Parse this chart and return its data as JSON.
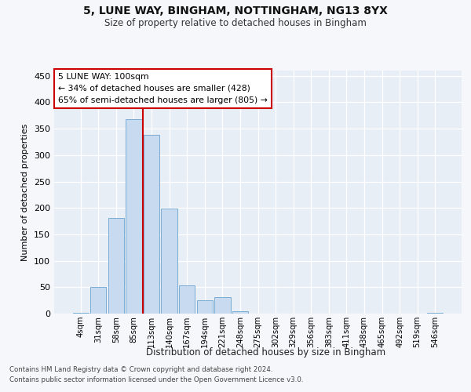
{
  "title1": "5, LUNE WAY, BINGHAM, NOTTINGHAM, NG13 8YX",
  "title2": "Size of property relative to detached houses in Bingham",
  "xlabel": "Distribution of detached houses by size in Bingham",
  "ylabel": "Number of detached properties",
  "bar_labels": [
    "4sqm",
    "31sqm",
    "58sqm",
    "85sqm",
    "113sqm",
    "140sqm",
    "167sqm",
    "194sqm",
    "221sqm",
    "248sqm",
    "275sqm",
    "302sqm",
    "329sqm",
    "356sqm",
    "383sqm",
    "411sqm",
    "438sqm",
    "465sqm",
    "492sqm",
    "519sqm",
    "546sqm"
  ],
  "bar_values": [
    2,
    50,
    181,
    368,
    338,
    199,
    54,
    25,
    31,
    5,
    0,
    0,
    0,
    0,
    0,
    0,
    0,
    0,
    0,
    0,
    1
  ],
  "bar_color": "#c8daf0",
  "bar_edge_color": "#7aadd4",
  "vline_color": "#cc0000",
  "vline_pos": 3.5,
  "annotation_text": "5 LUNE WAY: 100sqm\n← 34% of detached houses are smaller (428)\n65% of semi-detached houses are larger (805) →",
  "annotation_box_facecolor": "#ffffff",
  "annotation_box_edgecolor": "#cc0000",
  "ylim": [
    0,
    460
  ],
  "yticks": [
    0,
    50,
    100,
    150,
    200,
    250,
    300,
    350,
    400,
    450
  ],
  "footer1": "Contains HM Land Registry data © Crown copyright and database right 2024.",
  "footer2": "Contains public sector information licensed under the Open Government Licence v3.0.",
  "fig_bg_color": "#f5f7fa",
  "plot_bg_color": "#e8eef5"
}
